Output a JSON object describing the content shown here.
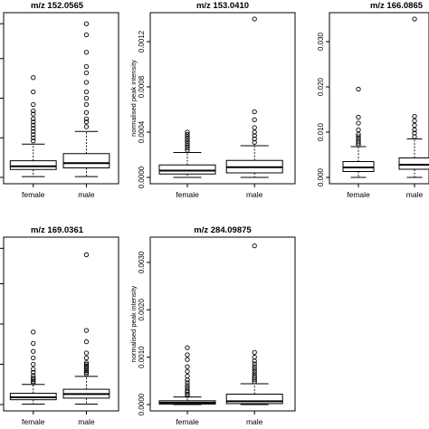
{
  "chart_data": [
    {
      "type": "boxplot",
      "title": "m/z 152.0565",
      "ylabel": "",
      "categories": [
        "female",
        "male"
      ],
      "yticks": [],
      "ylim": [
        0,
        1
      ],
      "series": [
        {
          "q1": 0.05,
          "median": 0.07,
          "q3": 0.105,
          "whislo": 0.005,
          "whishi": 0.21,
          "outliers": [
            0.23,
            0.25,
            0.27,
            0.29,
            0.31,
            0.33,
            0.35,
            0.37,
            0.4,
            0.42,
            0.46,
            0.54,
            0.63
          ]
        },
        {
          "q1": 0.06,
          "median": 0.09,
          "q3": 0.15,
          "whislo": 0.005,
          "whishi": 0.29,
          "outliers": [
            0.32,
            0.35,
            0.37,
            0.41,
            0.46,
            0.5,
            0.54,
            0.6,
            0.66,
            0.7,
            0.79,
            0.9,
            0.97
          ]
        }
      ]
    },
    {
      "type": "boxplot",
      "title": "m/z 153.0410",
      "ylabel": "normalised peak intensity",
      "categories": [
        "female",
        "male"
      ],
      "yticks": [
        "0.0000",
        "0.0004",
        "0.0008",
        "0.0012"
      ],
      "ylim": [
        0,
        0.0014
      ],
      "series": [
        {
          "q1": 3e-05,
          "median": 6e-05,
          "q3": 0.00011,
          "whislo": 0.0,
          "whishi": 0.00022,
          "outliers": [
            0.00024,
            0.00026,
            0.00028,
            0.0003,
            0.00032,
            0.00034,
            0.00036,
            0.00038,
            0.0004
          ]
        },
        {
          "q1": 4e-05,
          "median": 9e-05,
          "q3": 0.00015,
          "whislo": 0.0,
          "whishi": 0.00028,
          "outliers": [
            0.00031,
            0.00034,
            0.00037,
            0.0004,
            0.00044,
            0.00051,
            0.00058,
            0.0014
          ]
        }
      ]
    },
    {
      "type": "boxplot",
      "title": "m/z 166.0865",
      "ylabel": "",
      "categories": [
        "female",
        "male"
      ],
      "yticks": [
        "0.000",
        "0.010",
        "0.020",
        "0.030"
      ],
      "ylim": [
        0,
        0.035
      ],
      "series": [
        {
          "q1": 0.0013,
          "median": 0.0022,
          "q3": 0.0035,
          "whislo": 0.0,
          "whishi": 0.0068,
          "outliers": [
            0.0072,
            0.0076,
            0.008,
            0.0085,
            0.009,
            0.0095,
            0.0105,
            0.012,
            0.0133,
            0.0195
          ]
        },
        {
          "q1": 0.0018,
          "median": 0.0028,
          "q3": 0.0043,
          "whislo": 0.0,
          "whishi": 0.0085,
          "outliers": [
            0.009,
            0.0098,
            0.0105,
            0.0115,
            0.0125,
            0.0135,
            0.035
          ]
        }
      ]
    },
    {
      "type": "boxplot",
      "title": "m/z 169.0361",
      "ylabel": "",
      "categories": [
        "female",
        "male"
      ],
      "yticks": [],
      "ylim": [
        0,
        1
      ],
      "series": [
        {
          "q1": 0.03,
          "median": 0.045,
          "q3": 0.07,
          "whislo": 0.003,
          "whishi": 0.125,
          "outliers": [
            0.135,
            0.145,
            0.155,
            0.165,
            0.18,
            0.2,
            0.22,
            0.25,
            0.29,
            0.33,
            0.38,
            0.45
          ]
        },
        {
          "q1": 0.04,
          "median": 0.065,
          "q3": 0.095,
          "whislo": 0.003,
          "whishi": 0.175,
          "outliers": [
            0.19,
            0.2,
            0.21,
            0.22,
            0.23,
            0.24,
            0.25,
            0.26,
            0.29,
            0.32,
            0.39,
            0.46,
            0.93
          ]
        }
      ]
    },
    {
      "type": "boxplot",
      "title": "m/z 284.09875",
      "ylabel": "normalised peak intensity",
      "categories": [
        "female",
        "male"
      ],
      "yticks": [
        "0.0000",
        "0.0010",
        "0.0020",
        "0.0030"
      ],
      "ylim": [
        0,
        0.0034
      ],
      "series": [
        {
          "q1": 1e-05,
          "median": 4e-05,
          "q3": 8e-05,
          "whislo": 0.0,
          "whishi": 0.00016,
          "outliers": [
            0.00019,
            0.00022,
            0.00026,
            0.0003,
            0.00035,
            0.0004,
            0.00046,
            0.00052,
            0.0006,
            0.0007,
            0.0008,
            0.00095,
            0.00105,
            0.0012
          ]
        },
        {
          "q1": 2e-05,
          "median": 7e-05,
          "q3": 0.00022,
          "whislo": 0.0,
          "whishi": 0.00044,
          "outliers": [
            0.00048,
            0.00052,
            0.00056,
            0.0006,
            0.00065,
            0.0007,
            0.00075,
            0.0008,
            0.00086,
            0.00092,
            0.001,
            0.0011,
            0.00335
          ]
        }
      ]
    }
  ]
}
